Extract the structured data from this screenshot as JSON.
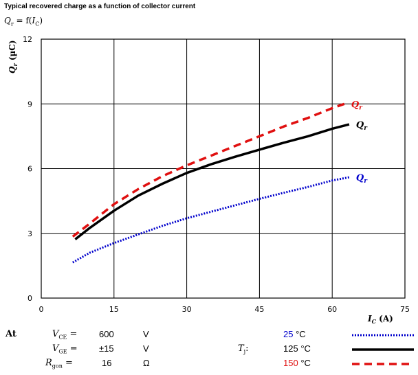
{
  "header": {
    "title": "Typical recovered charge as a function of collector current",
    "formula": {
      "sym": "Q",
      "sub": "r",
      "eq": " = f(",
      "arg": "I",
      "argsub": "C",
      "close": ")"
    }
  },
  "chart_data": {
    "type": "line",
    "xlim": [
      0,
      75
    ],
    "ylim": [
      0,
      12
    ],
    "x_ticks": [
      0,
      15,
      30,
      45,
      60,
      75
    ],
    "y_ticks": [
      0,
      3,
      6,
      9,
      12
    ],
    "xlabel": {
      "sym": "I",
      "sub": "C",
      "unit": " (A)"
    },
    "ylabel": {
      "sym": "Q",
      "sub": "r",
      "unit": " (µC)"
    },
    "grid": true,
    "series": [
      {
        "name": "Qr",
        "label_sym": "Q",
        "label_sub": "r",
        "tj": "25",
        "color": "#0000cc",
        "style": "dotted",
        "x": [
          6.5,
          10,
          15,
          20,
          25,
          30,
          35,
          40,
          45,
          50,
          55,
          60,
          63.5
        ],
        "y": [
          1.65,
          2.1,
          2.55,
          2.95,
          3.35,
          3.7,
          4.0,
          4.3,
          4.6,
          4.88,
          5.15,
          5.45,
          5.6
        ]
      },
      {
        "name": "Qr",
        "label_sym": "Q",
        "label_sub": "r",
        "tj": "125",
        "color": "#000000",
        "style": "solid",
        "x": [
          7,
          10,
          15,
          20,
          25,
          30,
          35,
          40,
          45,
          50,
          55,
          60,
          63.5
        ],
        "y": [
          2.72,
          3.25,
          4.05,
          4.75,
          5.3,
          5.8,
          6.2,
          6.55,
          6.88,
          7.2,
          7.5,
          7.85,
          8.05
        ]
      },
      {
        "name": "Qr",
        "label_sym": "Q",
        "label_sub": "r",
        "tj": "150",
        "color": "#e01010",
        "style": "dashed",
        "x": [
          6.5,
          10,
          15,
          20,
          25,
          30,
          35,
          40,
          45,
          50,
          55,
          60,
          62.5
        ],
        "y": [
          2.85,
          3.45,
          4.35,
          5.05,
          5.65,
          6.15,
          6.6,
          7.05,
          7.5,
          7.95,
          8.35,
          8.8,
          9.0
        ]
      }
    ]
  },
  "conditions": {
    "at_label": "At",
    "rows": [
      {
        "sym": "V",
        "sub": "CE",
        "eq": " =",
        "value": "600",
        "unit": "V"
      },
      {
        "sym": "V",
        "sub": "GE",
        "eq": " =",
        "value": "±15",
        "unit": "V"
      },
      {
        "sym": "R",
        "sub": "gon",
        "eq": " =",
        "value": "16",
        "unit": "Ω"
      }
    ],
    "tj": {
      "sym": "T",
      "sub": "j",
      "eq": ":"
    },
    "temp_unit": "°C"
  }
}
